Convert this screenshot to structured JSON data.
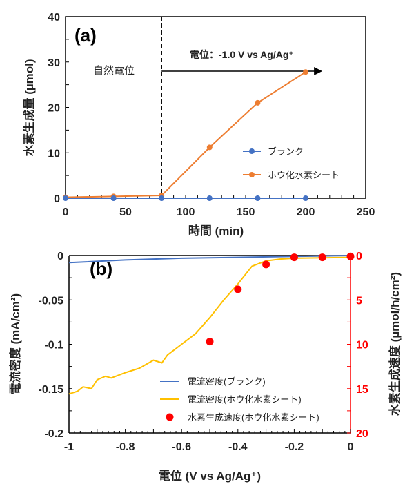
{
  "chart_data": [
    {
      "type": "line",
      "panel_label": "(a)",
      "xlabel": "時間 (min)",
      "ylabel": "水素生成量 (µmol)",
      "xlim": [
        0,
        250
      ],
      "ylim": [
        0,
        40
      ],
      "xticks": [
        0,
        50,
        100,
        150,
        200,
        250
      ],
      "yticks": [
        0,
        10,
        20,
        30,
        40
      ],
      "legend": "center-right",
      "annotations": {
        "left_region": "自然電位",
        "right_region": "電位：-1.0 V vs Ag/Ag⁺",
        "divider_x": 80
      },
      "series": [
        {
          "name": "ブランク",
          "color": "#4472C4",
          "x": [
            0,
            40,
            80,
            120,
            160,
            200
          ],
          "y": [
            0,
            0,
            0,
            0,
            0,
            0
          ]
        },
        {
          "name": "ホウ化水素シート",
          "color": "#ED7D31",
          "x": [
            0,
            40,
            80,
            120,
            160,
            200
          ],
          "y": [
            0.2,
            0.4,
            0.6,
            11.2,
            21,
            27.8
          ]
        }
      ]
    },
    {
      "type": "line+scatter",
      "panel_label": "(b)",
      "xlabel": "電位 (V vs Ag/Ag⁺)",
      "ylabel": "電流密度 (mA/cm²)",
      "y2label": "水素生成速度 (µmol/h/cm²)",
      "xlim": [
        -1,
        0
      ],
      "ylim": [
        -0.2,
        0
      ],
      "y2lim": [
        20,
        0
      ],
      "y2_color": "#FF0000",
      "xticks": [
        "-1",
        "-0.8",
        "-0.6",
        "-0.4",
        "-0.2",
        "0"
      ],
      "yticks": [
        "0",
        "-0.05",
        "-0.1",
        "-0.15",
        "-0.2"
      ],
      "y2ticks": [
        "0",
        "5",
        "10",
        "15",
        "20"
      ],
      "legend": "bottom-center",
      "series": [
        {
          "name": "電流密度(ブランク)",
          "color": "#4472C4",
          "axis": "left",
          "x": [
            -1,
            -0.8,
            -0.6,
            -0.4,
            -0.2,
            0
          ],
          "y": [
            -0.008,
            -0.005,
            -0.003,
            -0.002,
            -0.001,
            0
          ]
        },
        {
          "name": "電流密度(ホウ化水素シート)",
          "color": "#FFC000",
          "axis": "left",
          "x": [
            -1,
            -0.97,
            -0.95,
            -0.92,
            -0.9,
            -0.87,
            -0.85,
            -0.8,
            -0.75,
            -0.7,
            -0.67,
            -0.65,
            -0.6,
            -0.55,
            -0.5,
            -0.45,
            -0.4,
            -0.35,
            -0.3,
            -0.25,
            -0.2,
            0
          ],
          "y": [
            -0.156,
            -0.153,
            -0.148,
            -0.15,
            -0.14,
            -0.136,
            -0.138,
            -0.132,
            -0.127,
            -0.118,
            -0.121,
            -0.112,
            -0.1,
            -0.088,
            -0.07,
            -0.05,
            -0.032,
            -0.012,
            -0.006,
            -0.004,
            -0.003,
            -0.002
          ]
        },
        {
          "name": "水素生成速度(ホウ化水素シート)",
          "color": "#FF0000",
          "axis": "right",
          "marker": "circle",
          "x": [
            -0.5,
            -0.4,
            -0.3,
            -0.2,
            -0.1,
            0
          ],
          "y": [
            9.7,
            3.8,
            1,
            0.2,
            0.2,
            0.1
          ]
        }
      ]
    }
  ]
}
